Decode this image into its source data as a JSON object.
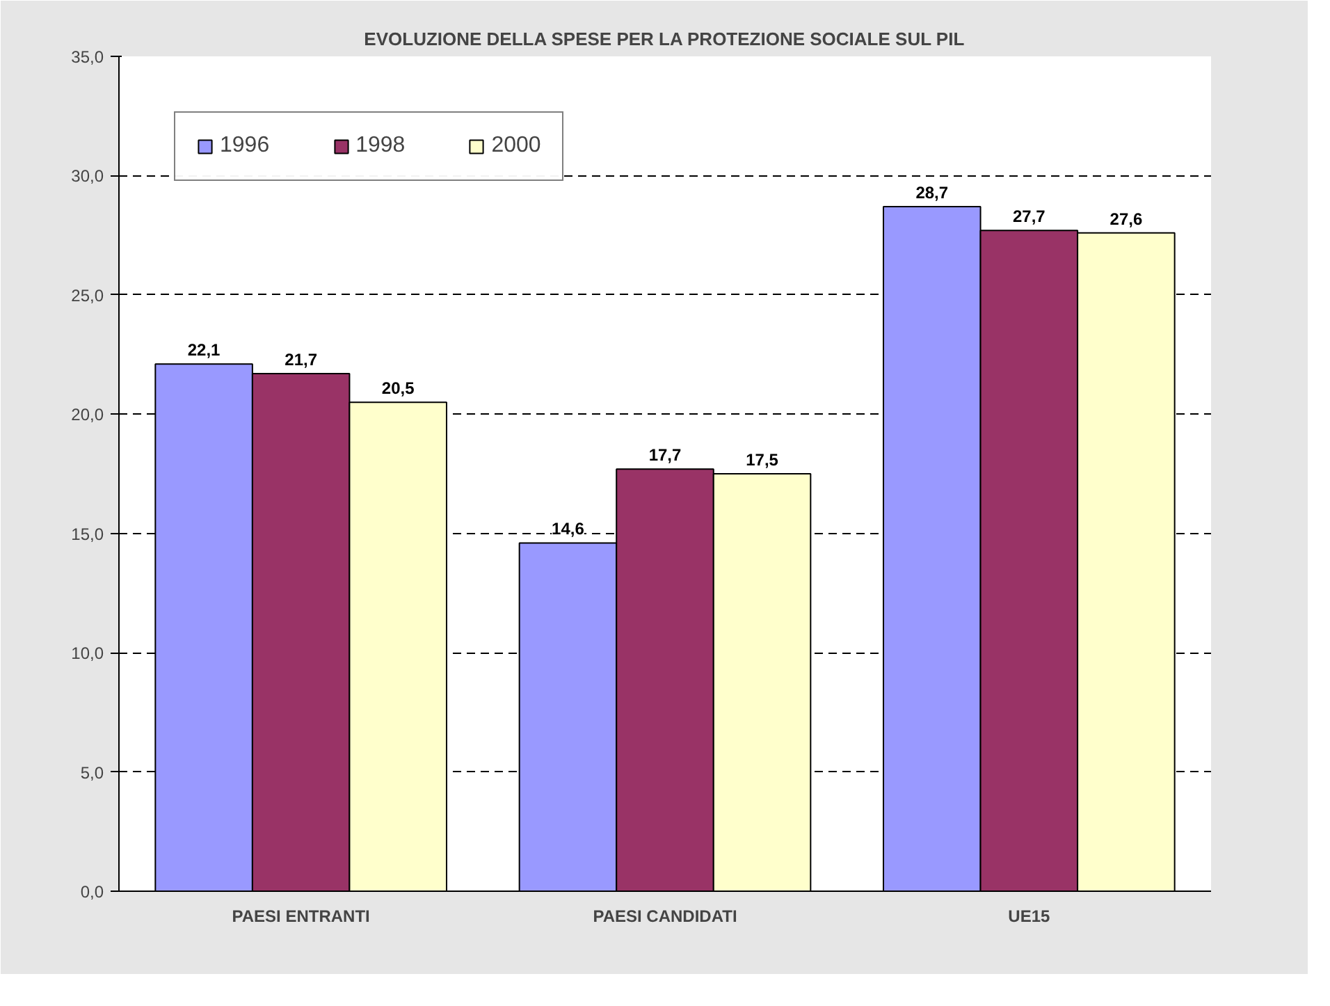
{
  "chart_data": {
    "type": "bar",
    "title": "EVOLUZIONE DELLA SPESE PER LA PROTEZIONE SOCIALE SUL PIL",
    "categories": [
      "PAESI ENTRANTI",
      "PAESI CANDIDATI",
      "UE15"
    ],
    "series": [
      {
        "name": "1996",
        "color": "#9999ff",
        "values": [
          22.1,
          14.6,
          28.7
        ],
        "value_labels": [
          "22,1",
          "14,6",
          "28,7"
        ]
      },
      {
        "name": "1998",
        "color": "#993366",
        "values": [
          21.7,
          17.7,
          27.7
        ],
        "value_labels": [
          "21,7",
          "17,7",
          "27,7"
        ]
      },
      {
        "name": "2000",
        "color": "#ffffcc",
        "values": [
          20.5,
          17.5,
          27.6
        ],
        "value_labels": [
          "20,5",
          "17,5",
          "27,6"
        ]
      }
    ],
    "ylim": [
      0,
      35
    ],
    "yticks": [
      {
        "value": 0,
        "label": "0,0"
      },
      {
        "value": 5,
        "label": "5,0"
      },
      {
        "value": 10,
        "label": "10,0"
      },
      {
        "value": 15,
        "label": "15,0"
      },
      {
        "value": 20,
        "label": "20,0"
      },
      {
        "value": 25,
        "label": "25,0"
      },
      {
        "value": 30,
        "label": "30,0"
      },
      {
        "value": 35,
        "label": "35,0"
      }
    ],
    "grid": "y",
    "legend": "top left"
  }
}
